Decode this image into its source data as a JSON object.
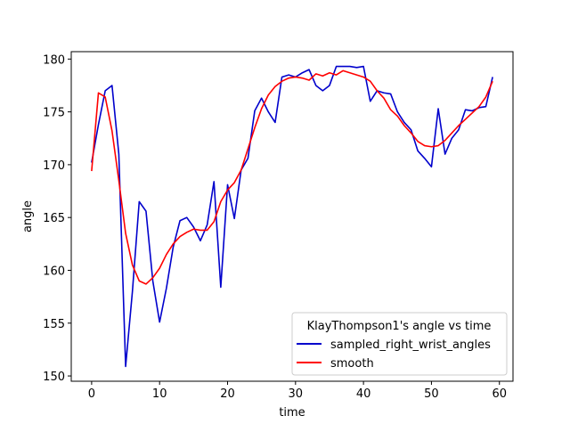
{
  "chart_data": {
    "type": "line",
    "title": "",
    "xlabel": "time",
    "ylabel": "angle",
    "xlim": [
      -3,
      62
    ],
    "ylim": [
      149.5,
      180.7
    ],
    "xticks": [
      0,
      10,
      20,
      30,
      40,
      50,
      60
    ],
    "yticks": [
      150,
      155,
      160,
      165,
      170,
      175,
      180
    ],
    "grid": false,
    "legend": {
      "title": "KlayThompson1's angle vs time",
      "placement": "lower-right"
    },
    "x": [
      0,
      1,
      2,
      3,
      4,
      5,
      6,
      7,
      8,
      9,
      10,
      11,
      12,
      13,
      14,
      15,
      16,
      17,
      18,
      19,
      20,
      21,
      22,
      23,
      24,
      25,
      26,
      27,
      28,
      29,
      30,
      31,
      32,
      33,
      34,
      35,
      36,
      37,
      38,
      39,
      40,
      41,
      42,
      43,
      44,
      45,
      46,
      47,
      48,
      49,
      50,
      51,
      52,
      53,
      54,
      55,
      56,
      57,
      58,
      59
    ],
    "series": [
      {
        "name": "sampled_right_wrist_angles",
        "color": "#0000cc",
        "values": [
          170.2,
          173.8,
          177.0,
          177.5,
          171.0,
          150.9,
          158.0,
          166.5,
          165.6,
          159.0,
          155.1,
          158.3,
          162.2,
          164.7,
          165.0,
          164.1,
          162.8,
          164.3,
          168.4,
          158.4,
          168.1,
          164.9,
          169.5,
          170.6,
          175.1,
          176.3,
          175.0,
          174.0,
          178.3,
          178.5,
          178.3,
          178.7,
          179.0,
          177.5,
          177.0,
          177.5,
          179.3,
          179.3,
          179.3,
          179.2,
          179.3,
          176.0,
          177.0,
          176.8,
          176.7,
          175.0,
          174.0,
          173.3,
          171.3,
          170.6,
          169.8,
          175.3,
          171.0,
          172.5,
          173.3,
          175.2,
          175.1,
          175.4,
          175.5,
          178.3
        ]
      },
      {
        "name": "smooth",
        "color": "#ff0000",
        "values": [
          169.4,
          176.8,
          176.4,
          173.2,
          168.5,
          163.5,
          160.5,
          159.0,
          158.7,
          159.3,
          160.2,
          161.5,
          162.5,
          163.2,
          163.6,
          163.9,
          163.8,
          163.8,
          164.6,
          166.5,
          167.6,
          168.3,
          169.5,
          171.5,
          173.5,
          175.3,
          176.6,
          177.4,
          177.9,
          178.2,
          178.3,
          178.2,
          178.0,
          178.6,
          178.4,
          178.7,
          178.5,
          178.9,
          178.7,
          178.5,
          178.3,
          177.9,
          177.0,
          176.3,
          175.2,
          174.6,
          173.7,
          173.0,
          172.2,
          171.8,
          171.7,
          171.8,
          172.3,
          173.0,
          173.7,
          174.3,
          174.9,
          175.5,
          176.4,
          177.9
        ]
      }
    ]
  }
}
